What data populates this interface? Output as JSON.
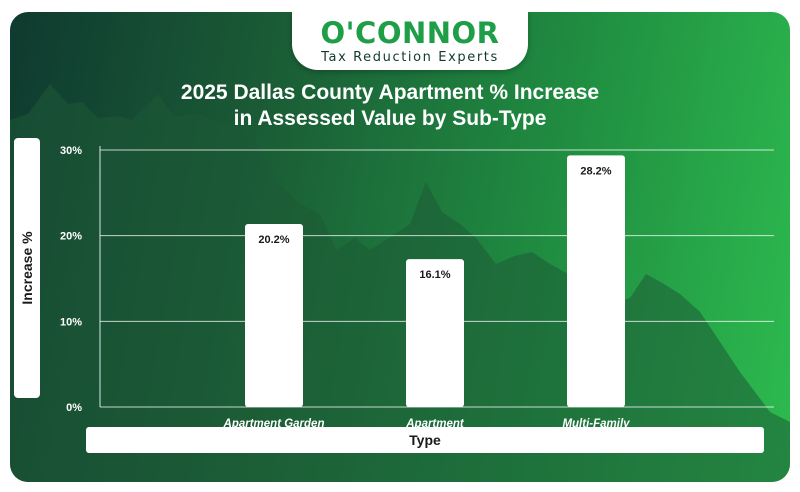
{
  "logo": {
    "brand": "O'CONNOR",
    "tagline": "Tax Reduction Experts"
  },
  "colors": {
    "brand_green": "#1e9e46",
    "background_dark": "#0f3a30",
    "background_light": "#2dbb4f",
    "bar": "#ffffff"
  },
  "chart_data": {
    "type": "bar",
    "title_line1": "2025 Dallas County Apartment % Increase",
    "title_line2": "in Assessed Value by Sub-Type",
    "xlabel": "Type",
    "ylabel": "Increase %",
    "categories": [
      "Apartment Garden",
      "Apartment",
      "Multi-Family"
    ],
    "values": [
      20.2,
      16.1,
      28.2
    ],
    "value_labels": [
      "20.2%",
      "16.1%",
      "28.2%"
    ],
    "yticks": [
      0,
      10,
      20,
      30
    ],
    "ytick_labels": [
      "0%",
      "10%",
      "20%",
      "30%"
    ],
    "ylim": [
      0,
      30
    ],
    "grid": true,
    "legend": "none"
  }
}
